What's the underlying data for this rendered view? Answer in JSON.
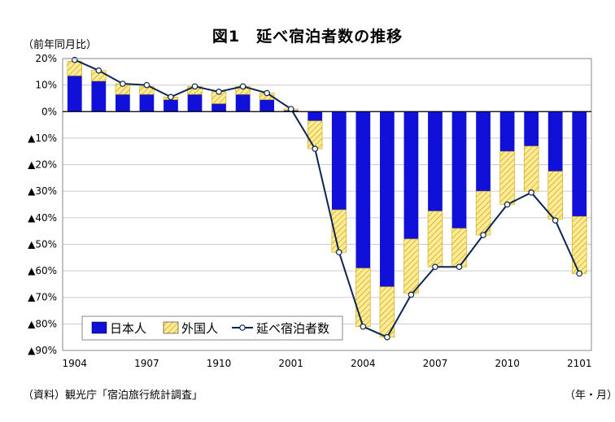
{
  "header": {
    "title": "図1　延べ宿泊者数の推移",
    "y_unit": "（前年同月比）",
    "x_unit": "（年・月）",
    "source": "（資料）観光庁「宿泊旅行統計調査」"
  },
  "colors": {
    "japanese": "#1010d8",
    "foreign_fill": "#ffeb99",
    "foreign_hatch": "#c8a400",
    "total_line": "#0d2550",
    "grid": "#cccccc"
  },
  "chart_data": {
    "type": "bar",
    "stacked": true,
    "title": "図1　延べ宿泊者数の推移",
    "xlabel": "（年・月）",
    "ylabel": "（前年同月比）",
    "ylim": [
      -90,
      20
    ],
    "y_ticks": [
      20,
      10,
      0,
      -10,
      -20,
      -30,
      -40,
      -50,
      -60,
      -70,
      -80,
      -90
    ],
    "y_tick_labels": [
      "20%",
      "10%",
      "0%",
      "▲10%",
      "▲20%",
      "▲30%",
      "▲40%",
      "▲50%",
      "▲60%",
      "▲70%",
      "▲80%",
      "▲90%"
    ],
    "x_tick_labels": [
      "1904",
      "1907",
      "1910",
      "2001",
      "2004",
      "2007",
      "2010",
      "2101"
    ],
    "x_tick_positions": [
      0,
      3,
      6,
      9,
      12,
      15,
      18,
      21
    ],
    "categories": [
      "1904",
      "1905",
      "1906",
      "1907",
      "1908",
      "1909",
      "1910",
      "1911",
      "1912",
      "2001",
      "2002",
      "2003",
      "2004",
      "2005",
      "2006",
      "2007",
      "2008",
      "2009",
      "2010",
      "2011",
      "2012",
      "2101"
    ],
    "grid": true,
    "legend_position": "bottom-left",
    "series": [
      {
        "name": "日本人",
        "type": "bar",
        "values": [
          13.5,
          11.5,
          6.5,
          6.5,
          4.5,
          6.5,
          3,
          6.5,
          4.5,
          0.5,
          -3.5,
          -37,
          -59,
          -66,
          -48,
          -37.5,
          -44,
          -30,
          -15,
          -13,
          -22.5,
          -39.5
        ]
      },
      {
        "name": "外国人",
        "type": "bar",
        "values": [
          5.5,
          4,
          4,
          3,
          1,
          3,
          4.5,
          3,
          2.5,
          0.5,
          -10.5,
          -16,
          -22,
          -19,
          -20.5,
          -21,
          -14.5,
          -16.5,
          -20,
          -17,
          -18,
          -21.5
        ]
      },
      {
        "name": "延べ宿泊者数",
        "type": "line",
        "values": [
          19.5,
          15.5,
          10.5,
          10,
          5.5,
          9.5,
          7.5,
          9.5,
          7,
          1,
          -14,
          -53,
          -81,
          -85,
          -69,
          -58.5,
          -58.5,
          -46.5,
          -35,
          -30.5,
          -41,
          -61
        ]
      }
    ]
  }
}
